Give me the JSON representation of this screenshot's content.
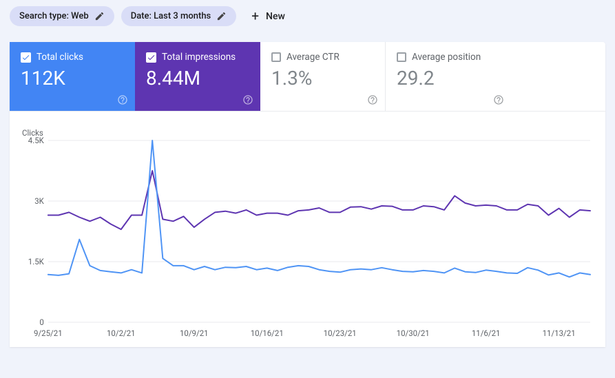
{
  "filters": {
    "search_type": "Search type: Web",
    "date": "Date: Last 3 months",
    "new_label": "New"
  },
  "cards": [
    {
      "key": "clicks",
      "label": "Total clicks",
      "value": "112K",
      "checked": true,
      "bg": "#4285f4"
    },
    {
      "key": "impressions",
      "label": "Total impressions",
      "value": "8.44M",
      "checked": true,
      "bg": "#5e35b1"
    },
    {
      "key": "ctr",
      "label": "Average CTR",
      "value": "1.3%",
      "checked": false,
      "bg": "#ffffff"
    },
    {
      "key": "position",
      "label": "Average position",
      "value": "29.2",
      "checked": false,
      "bg": "#ffffff"
    }
  ],
  "chart": {
    "type": "line",
    "yaxis_title": "Clicks",
    "ylim": [
      0,
      4500
    ],
    "yticks": [
      {
        "v": 0,
        "label": "0"
      },
      {
        "v": 1500,
        "label": "1.5K"
      },
      {
        "v": 3000,
        "label": "3K"
      },
      {
        "v": 4500,
        "label": "4.5K"
      }
    ],
    "xticks": [
      "9/25/21",
      "10/2/21",
      "10/9/21",
      "10/16/21",
      "10/23/21",
      "10/30/21",
      "11/6/21",
      "11/13/21"
    ],
    "x_count": 53,
    "series": [
      {
        "name": "impressions",
        "color": "#5e35b1",
        "width": 2,
        "data": [
          2650,
          2650,
          2720,
          2600,
          2500,
          2600,
          2430,
          2300,
          2650,
          2650,
          3750,
          2550,
          2500,
          2620,
          2350,
          2550,
          2720,
          2750,
          2700,
          2780,
          2650,
          2700,
          2700,
          2650,
          2760,
          2780,
          2830,
          2720,
          2720,
          2850,
          2860,
          2800,
          2880,
          2870,
          2780,
          2780,
          2880,
          2860,
          2780,
          3130,
          2950,
          2880,
          2900,
          2880,
          2780,
          2780,
          2920,
          2880,
          2650,
          2820,
          2600,
          2780,
          2760
        ]
      },
      {
        "name": "clicks",
        "color": "#4f94f5",
        "width": 2,
        "data": [
          1180,
          1160,
          1200,
          2050,
          1400,
          1280,
          1250,
          1220,
          1300,
          1220,
          4500,
          1580,
          1400,
          1400,
          1300,
          1380,
          1300,
          1360,
          1350,
          1380,
          1300,
          1340,
          1280,
          1360,
          1400,
          1380,
          1300,
          1260,
          1240,
          1300,
          1320,
          1300,
          1350,
          1300,
          1260,
          1250,
          1280,
          1260,
          1220,
          1340,
          1250,
          1230,
          1290,
          1260,
          1220,
          1210,
          1350,
          1290,
          1170,
          1220,
          1120,
          1220,
          1180
        ]
      }
    ],
    "background_color": "#ffffff",
    "grid_color": "#e8eaed"
  }
}
